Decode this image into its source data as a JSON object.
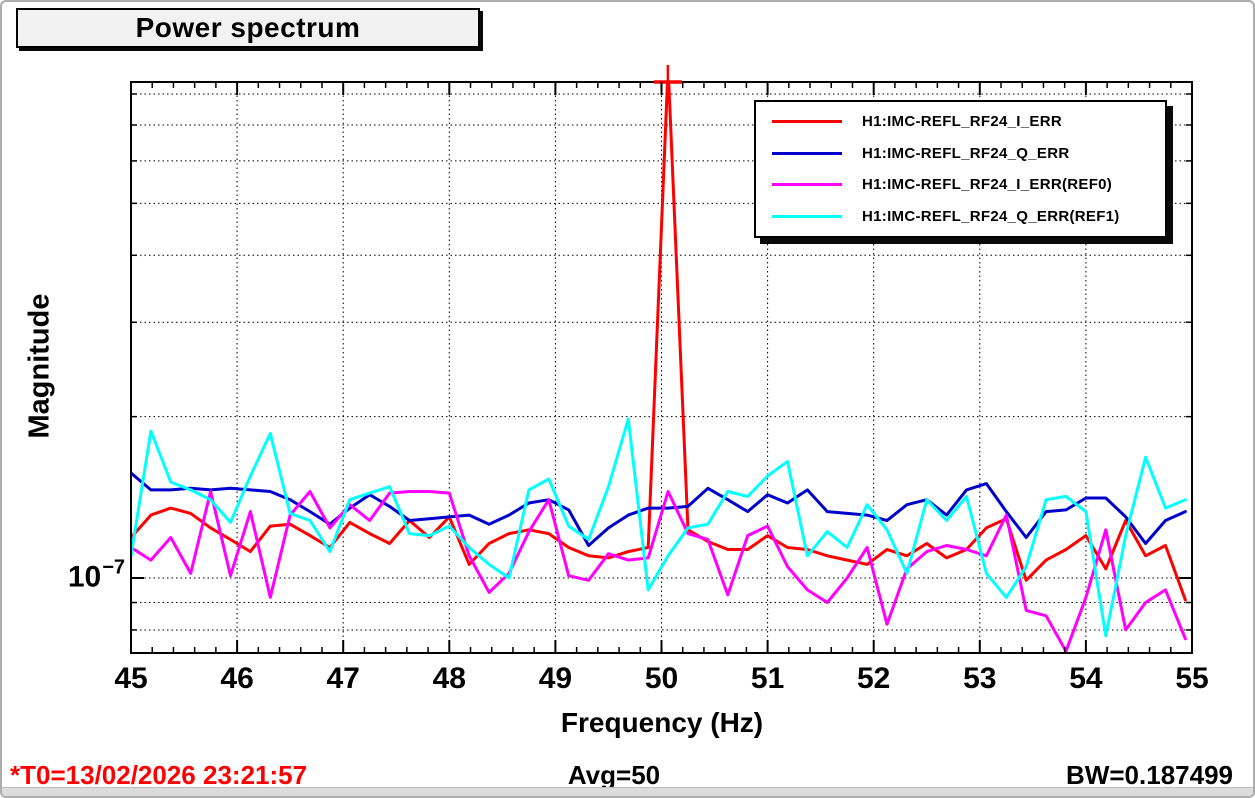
{
  "header": {
    "title": "Power spectrum"
  },
  "axes": {
    "y_tick_base": "10",
    "y_tick_exp": "−7",
    "x_label": "Frequency (Hz)",
    "y_label": "Magnitude"
  },
  "footer": {
    "t0": "*T0=13/02/2026 23:21:57",
    "avg": "Avg=50",
    "bw": "BW=0.187499",
    "t0_color": "#ff0000"
  },
  "chart_data": {
    "type": "line",
    "title": "Power spectrum",
    "xlabel": "Frequency (Hz)",
    "ylabel": "Magnitude",
    "x_range": [
      45,
      55
    ],
    "x_major_ticks": [
      45,
      46,
      47,
      48,
      49,
      50,
      51,
      52,
      53,
      54,
      55
    ],
    "x_minor_step": 0.2,
    "y_scale": "log",
    "y_labeled_tick": "1e-7",
    "y_range_approx": [
      "7.2e-8",
      "8.4e-7"
    ],
    "y_gridline_values_1e7": [
      0.8,
      0.9,
      1,
      2,
      3,
      4,
      5,
      6,
      7,
      8
    ],
    "grid": "dotted",
    "legend_position": "top-right",
    "value_unit": "1e-7",
    "bin_width_hz": 0.187499,
    "averages": 50,
    "peak": {
      "series": "H1:IMC-REFL_RF24_I_ERR",
      "x": 50.06,
      "clipped_at_top": true
    },
    "x": [
      45,
      45.1875,
      45.375,
      45.5625,
      45.75,
      45.9375,
      46.125,
      46.3125,
      46.5,
      46.6875,
      46.875,
      47.0625,
      47.25,
      47.4375,
      47.625,
      47.8125,
      48,
      48.1875,
      48.375,
      48.5625,
      48.75,
      48.9375,
      49.125,
      49.3125,
      49.5,
      49.6875,
      49.875,
      50.0625,
      50.25,
      50.4375,
      50.625,
      50.8125,
      51,
      51.1875,
      51.375,
      51.5625,
      51.75,
      51.9375,
      52.125,
      52.3125,
      52.5,
      52.6875,
      52.875,
      53.0625,
      53.25,
      53.4375,
      53.625,
      53.8125,
      54,
      54.1875,
      54.375,
      54.5625,
      54.75,
      54.9375
    ],
    "series": [
      {
        "name": "H1:IMC-REFL_RF24_I_ERR",
        "color": "#ff0000",
        "values": [
          1.19,
          1.31,
          1.35,
          1.32,
          1.24,
          1.18,
          1.12,
          1.25,
          1.26,
          1.2,
          1.14,
          1.27,
          1.21,
          1.16,
          1.28,
          1.19,
          1.3,
          1.06,
          1.16,
          1.21,
          1.23,
          1.21,
          1.14,
          1.1,
          1.09,
          1.12,
          1.14,
          9.0,
          1.23,
          1.17,
          1.13,
          1.13,
          1.2,
          1.14,
          1.13,
          1.1,
          1.08,
          1.06,
          1.13,
          1.1,
          1.16,
          1.09,
          1.13,
          1.24,
          1.29,
          0.99,
          1.08,
          1.13,
          1.2,
          1.04,
          1.28,
          1.1,
          1.15,
          0.91
        ]
      },
      {
        "name": "H1:IMC-REFL_RF24_Q_ERR",
        "color": "#0000cc",
        "values": [
          1.57,
          1.46,
          1.46,
          1.47,
          1.46,
          1.47,
          1.46,
          1.45,
          1.4,
          1.33,
          1.26,
          1.35,
          1.43,
          1.36,
          1.28,
          1.29,
          1.3,
          1.31,
          1.26,
          1.31,
          1.38,
          1.4,
          1.34,
          1.15,
          1.24,
          1.31,
          1.35,
          1.35,
          1.36,
          1.47,
          1.4,
          1.33,
          1.43,
          1.38,
          1.46,
          1.33,
          1.32,
          1.31,
          1.28,
          1.37,
          1.4,
          1.31,
          1.46,
          1.5,
          1.33,
          1.19,
          1.33,
          1.34,
          1.41,
          1.41,
          1.3,
          1.16,
          1.28,
          1.33
        ]
      },
      {
        "name": "H1:IMC-REFL_RF24_I_ERR(REF0)",
        "color": "#ff00ff",
        "values": [
          1.14,
          1.08,
          1.19,
          1.02,
          1.45,
          1.01,
          1.33,
          0.92,
          1.31,
          1.45,
          1.24,
          1.37,
          1.28,
          1.44,
          1.45,
          1.45,
          1.44,
          1.1,
          0.94,
          1.02,
          1.22,
          1.4,
          1.01,
          0.99,
          1.11,
          1.08,
          1.09,
          1.45,
          1.21,
          1.18,
          0.93,
          1.2,
          1.25,
          1.05,
          0.95,
          0.9,
          1.0,
          1.14,
          0.82,
          1.04,
          1.12,
          1.15,
          1.13,
          1.1,
          1.31,
          0.87,
          0.85,
          0.73,
          0.92,
          1.23,
          0.8,
          0.9,
          0.95,
          0.77
        ]
      },
      {
        "name": "H1:IMC-REFL_RF24_Q_ERR(REF1)",
        "color": "#00ffff",
        "values": [
          1.1,
          1.88,
          1.51,
          1.46,
          1.4,
          1.27,
          1.55,
          1.86,
          1.32,
          1.28,
          1.12,
          1.4,
          1.44,
          1.48,
          1.21,
          1.2,
          1.25,
          1.14,
          1.06,
          1.0,
          1.46,
          1.53,
          1.25,
          1.18,
          1.48,
          1.98,
          0.95,
          1.1,
          1.24,
          1.26,
          1.45,
          1.42,
          1.55,
          1.65,
          1.1,
          1.22,
          1.14,
          1.37,
          1.23,
          1.02,
          1.4,
          1.28,
          1.42,
          1.02,
          0.92,
          1.05,
          1.4,
          1.42,
          1.33,
          0.78,
          1.2,
          1.68,
          1.35,
          1.4
        ]
      }
    ]
  }
}
